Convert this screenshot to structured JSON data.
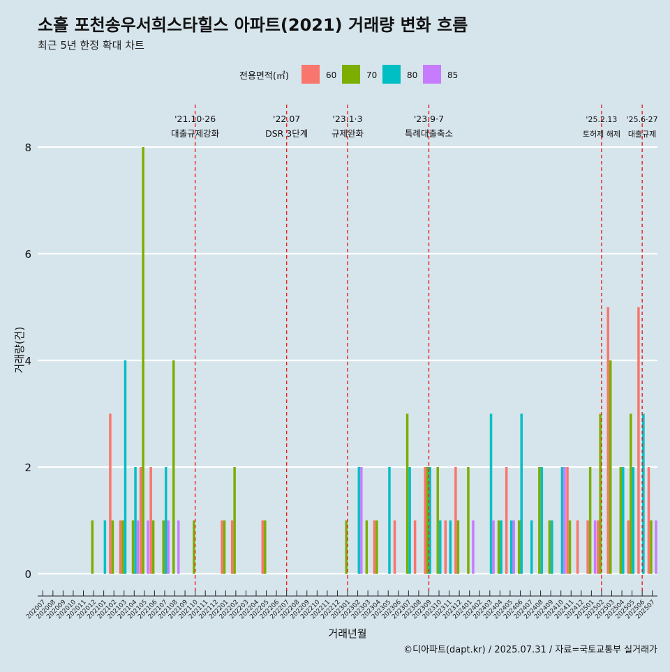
{
  "chart_data": {
    "type": "bar",
    "title": "소흘 포천송우서희스타힐스 아파트(2021) 거래량 변화 흐름",
    "subtitle": "최근 5년 한정 확대 차트",
    "xlabel": "거래년월",
    "ylabel": "거래량(건)",
    "caption": "©디아파트(dapt.kr) / 2025.07.31 / 자료=국토교통부 실거래가",
    "ylim": [
      -0.35,
      8.8
    ],
    "yticks": [
      0,
      2,
      4,
      6,
      8
    ],
    "legend": {
      "title": "전용면적(㎡)",
      "position": "top",
      "items": [
        {
          "name": "60",
          "color": "#f8766d"
        },
        {
          "name": "70",
          "color": "#7cae00"
        },
        {
          "name": "80",
          "color": "#00bfc4"
        },
        {
          "name": "85",
          "color": "#c77cff"
        }
      ]
    },
    "categories": [
      "202007",
      "202008",
      "202009",
      "202010",
      "202011",
      "202012",
      "202101",
      "202102",
      "202103",
      "202104",
      "202105",
      "202106",
      "202107",
      "202108",
      "202109",
      "202110",
      "202111",
      "202112",
      "202201",
      "202202",
      "202203",
      "202204",
      "202205",
      "202206",
      "202207",
      "202208",
      "202209",
      "202210",
      "202211",
      "202212",
      "202301",
      "202302",
      "202303",
      "202304",
      "202305",
      "202306",
      "202307",
      "202308",
      "202309",
      "202310",
      "202311",
      "202312",
      "202401",
      "202402",
      "202403",
      "202404",
      "202405",
      "202406",
      "202407",
      "202408",
      "202409",
      "202410",
      "202411",
      "202412",
      "202501",
      "202502",
      "202503",
      "202504",
      "202505",
      "202506",
      "202507"
    ],
    "series": [
      {
        "name": "60",
        "values": [
          0,
          0,
          0,
          0,
          0,
          0,
          0,
          3,
          1,
          0,
          2,
          2,
          0,
          0,
          0,
          0,
          0,
          0,
          1,
          1,
          0,
          0,
          1,
          0,
          0,
          0,
          0,
          0,
          0,
          0,
          0,
          0,
          0,
          1,
          0,
          1,
          0,
          1,
          2,
          0,
          1,
          2,
          0,
          0,
          0,
          0,
          2,
          0,
          0,
          0,
          0,
          0,
          2,
          1,
          1,
          1,
          5,
          0,
          1,
          5,
          2
        ]
      },
      {
        "name": "70",
        "values": [
          0,
          0,
          0,
          0,
          0,
          1,
          0,
          1,
          1,
          1,
          8,
          1,
          1,
          4,
          0,
          1,
          0,
          0,
          1,
          2,
          0,
          0,
          1,
          0,
          0,
          0,
          0,
          0,
          0,
          0,
          1,
          0,
          1,
          1,
          0,
          0,
          3,
          0,
          2,
          2,
          0,
          1,
          2,
          0,
          0,
          1,
          0,
          1,
          0,
          2,
          1,
          0,
          1,
          0,
          2,
          3,
          4,
          2,
          3,
          0,
          1
        ]
      },
      {
        "name": "80",
        "values": [
          0,
          0,
          0,
          0,
          0,
          0,
          1,
          0,
          4,
          2,
          0,
          0,
          2,
          0,
          0,
          0,
          0,
          0,
          0,
          0,
          0,
          0,
          0,
          0,
          0,
          0,
          0,
          0,
          0,
          0,
          0,
          2,
          0,
          0,
          2,
          0,
          2,
          0,
          2,
          1,
          1,
          0,
          0,
          0,
          3,
          1,
          1,
          3,
          1,
          2,
          1,
          2,
          0,
          0,
          0,
          0,
          0,
          2,
          2,
          3,
          0
        ]
      },
      {
        "name": "85",
        "values": [
          0,
          0,
          0,
          0,
          0,
          0,
          0,
          0,
          0,
          1,
          1,
          0,
          1,
          1,
          0,
          0,
          0,
          0,
          0,
          0,
          0,
          0,
          0,
          0,
          0,
          0,
          0,
          0,
          0,
          0,
          0,
          2,
          0,
          0,
          0,
          0,
          0,
          0,
          0,
          0,
          0,
          0,
          1,
          0,
          1,
          0,
          1,
          0,
          0,
          0,
          0,
          2,
          0,
          0,
          1,
          0,
          0,
          0,
          0,
          0,
          1
        ]
      }
    ],
    "events": [
      {
        "date": "202110",
        "line1": "'21.10·26",
        "line2": "대출규제강화"
      },
      {
        "date": "202207",
        "line1": "'22.07",
        "line2": "DSR 3단계"
      },
      {
        "date": "202301",
        "line1": "'23.1·3",
        "line2": "규제완화"
      },
      {
        "date": "202309",
        "line1": "'23.9·7",
        "line2": "특례대출축소"
      },
      {
        "date": "202502",
        "line1": "'25.2.13",
        "line2": "토허제 해제"
      },
      {
        "date": "202506",
        "line1": "'25.6·27",
        "line2": "대출규제"
      }
    ]
  }
}
